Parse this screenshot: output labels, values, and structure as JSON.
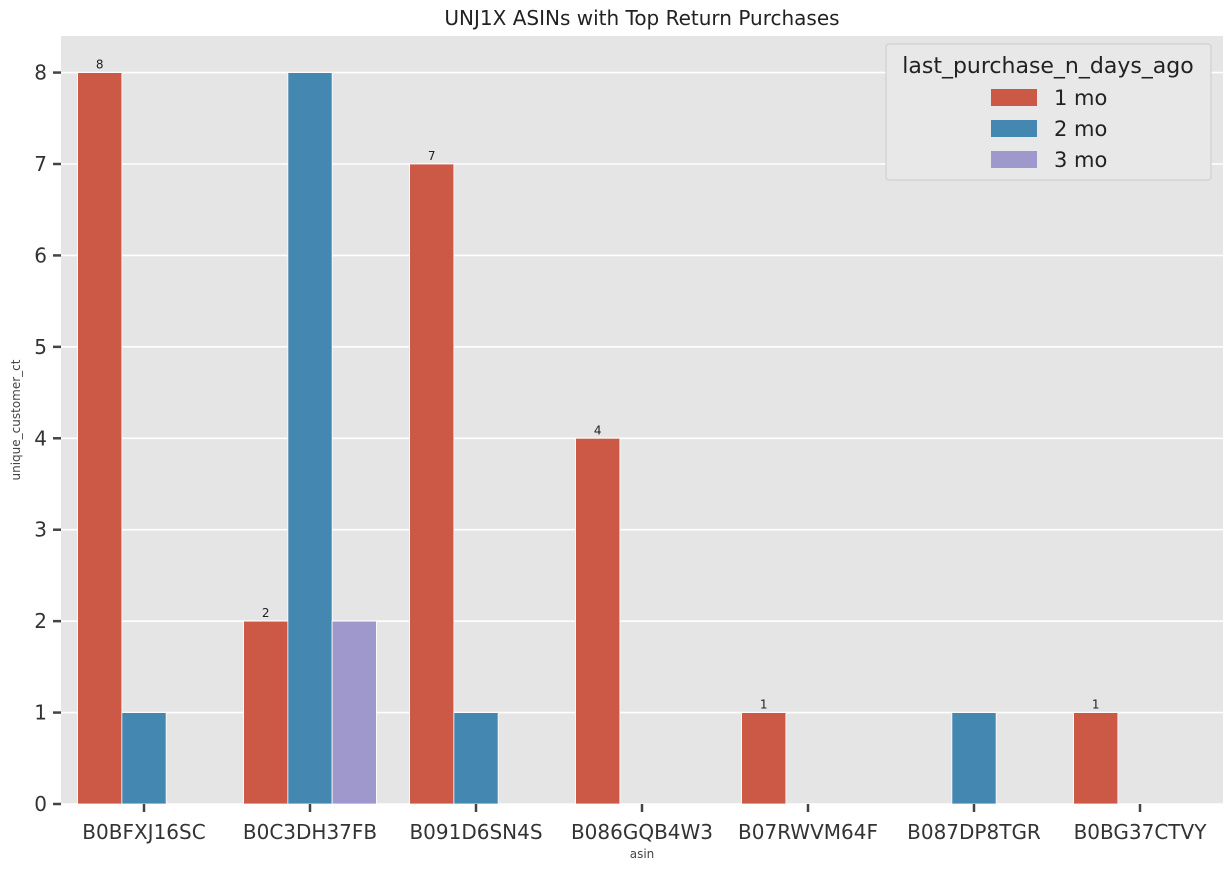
{
  "chart_data": {
    "type": "bar",
    "title": "UNJ1X ASINs with Top Return Purchases",
    "xlabel": "asin",
    "ylabel": "unique_customer_ct",
    "categories": [
      "B0BFXJ16SC",
      "B0C3DH37FB",
      "B091D6SN4S",
      "B086GQB4W3",
      "B07RWVM64F",
      "B087DP8TGR",
      "B0BG37CTVY"
    ],
    "series": [
      {
        "name": "1 mo",
        "color": "#cc5846",
        "values": [
          8,
          2,
          7,
          4,
          1,
          null,
          1
        ]
      },
      {
        "name": "2 mo",
        "color": "#4487b0",
        "values": [
          1,
          8,
          1,
          null,
          null,
          1,
          null
        ]
      },
      {
        "name": "3 mo",
        "color": "#9f98cc",
        "values": [
          null,
          2,
          null,
          null,
          null,
          null,
          null
        ]
      }
    ],
    "data_labels": {
      "series": "1 mo",
      "values": [
        8,
        2,
        7,
        4,
        1,
        null,
        1
      ]
    },
    "ylim": [
      0,
      8.4
    ],
    "yticks": [
      0,
      1,
      2,
      3,
      4,
      5,
      6,
      7,
      8
    ],
    "grid": true,
    "legend": {
      "title": "last_purchase_n_days_ago",
      "placement": "top-right"
    }
  }
}
